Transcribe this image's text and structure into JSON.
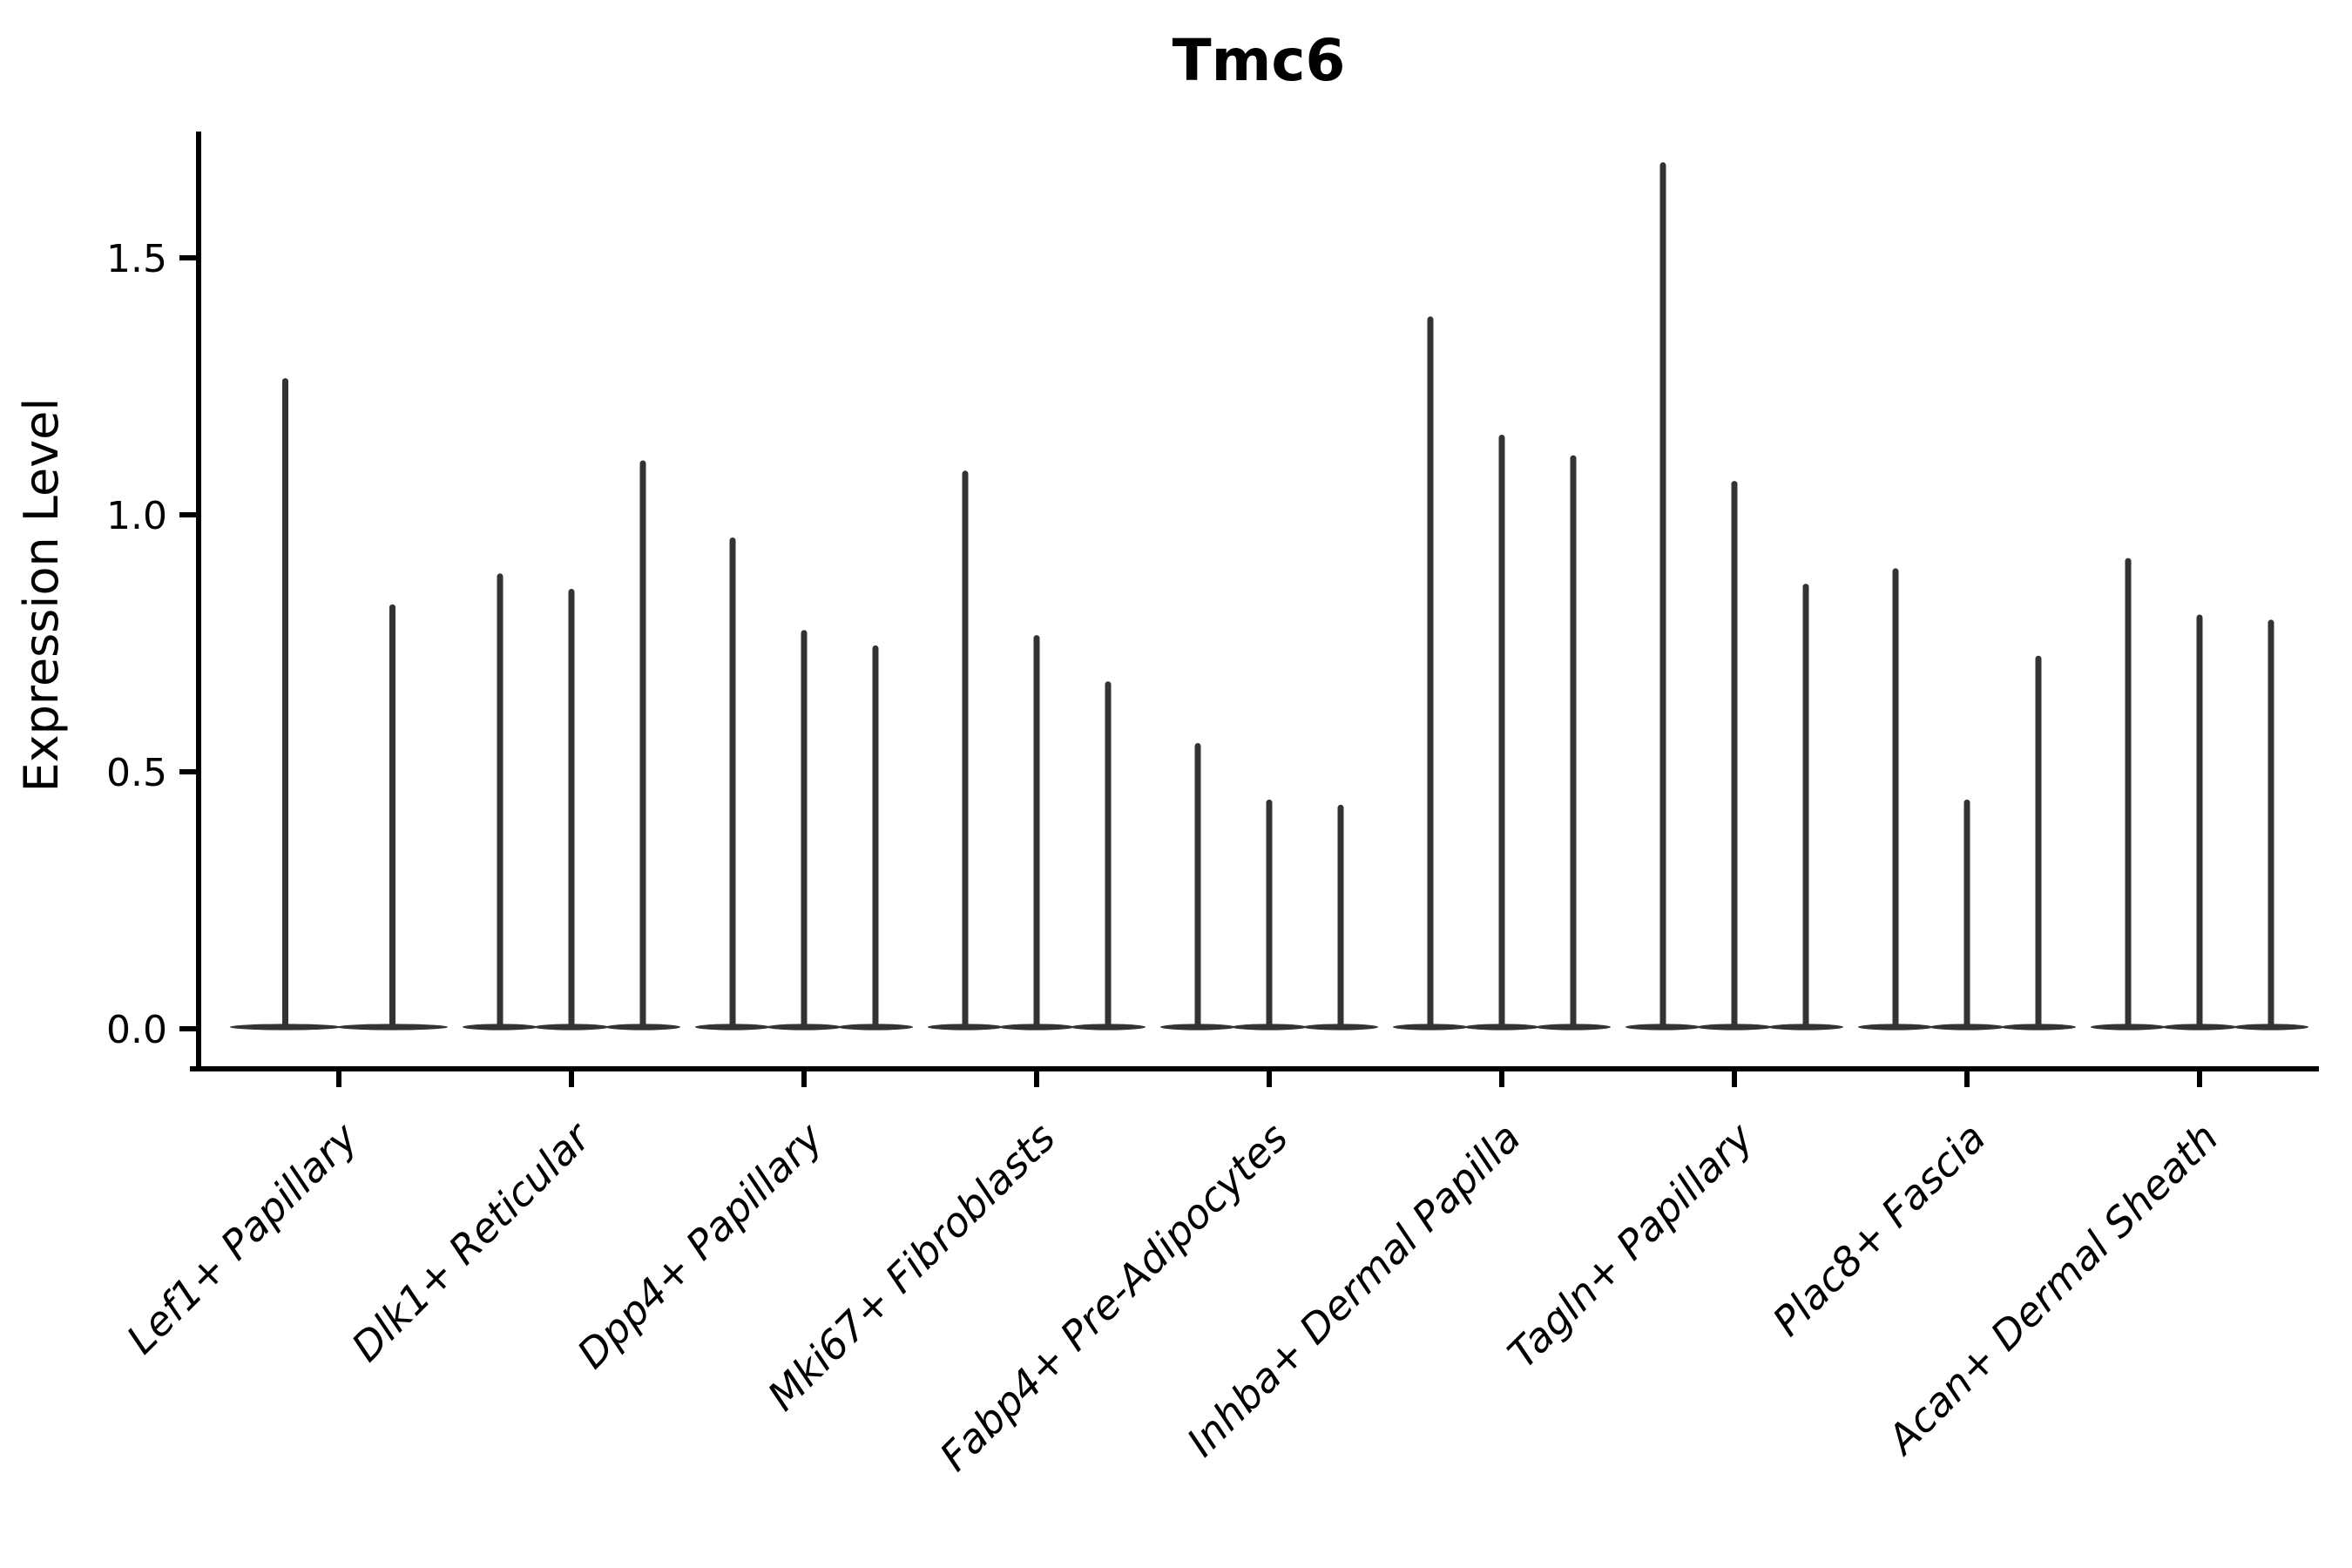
{
  "figure": {
    "background": "#ffffff"
  },
  "chart_data": {
    "type": "violin",
    "title": "Tmc6",
    "xlabel": "",
    "ylabel": "Expression Level",
    "ytick_labels": [
      "0.0",
      "0.5",
      "1.0",
      "1.5"
    ],
    "ytick_values": [
      0.0,
      0.5,
      1.0,
      1.5
    ],
    "ylim": [
      -0.07,
      1.75
    ],
    "grid": false,
    "legend": "none",
    "violin_color": "#333333",
    "axis_color": "#000000",
    "x_label_rotation_deg": 45,
    "categories": [
      "Lef1+ Papillary",
      "Dlk1+ Reticular",
      "Dpp4+ Papillary",
      "Mki67+ Fibroblasts",
      "Fabp4+ Pre-Adipocytes",
      "Inhba+ Dermal Papilla",
      "Tagln+ Papillary",
      "Plac8+ Fascia",
      "Acan+ Dermal Sheath"
    ],
    "groups": [
      {
        "category": "Lef1+ Papillary",
        "spike_max_values": [
          1.26,
          0.82
        ]
      },
      {
        "category": "Dlk1+ Reticular",
        "spike_max_values": [
          0.88,
          0.85,
          1.1
        ]
      },
      {
        "category": "Dpp4+ Papillary",
        "spike_max_values": [
          0.95,
          0.77,
          0.74
        ]
      },
      {
        "category": "Mki67+ Fibroblasts",
        "spike_max_values": [
          1.08,
          0.76,
          0.67
        ]
      },
      {
        "category": "Fabp4+ Pre-Adipocytes",
        "spike_max_values": [
          0.55,
          0.44,
          0.43
        ]
      },
      {
        "category": "Inhba+ Dermal Papilla",
        "spike_max_values": [
          1.38,
          1.15,
          1.11
        ]
      },
      {
        "category": "Tagln+ Papillary",
        "spike_max_values": [
          1.68,
          1.06,
          0.86
        ]
      },
      {
        "category": "Plac8+ Fascia",
        "spike_max_values": [
          0.89,
          0.44,
          0.72
        ]
      },
      {
        "category": "Acan+ Dermal Sheath",
        "spike_max_values": [
          0.91,
          0.8,
          0.79
        ]
      }
    ],
    "description": "Each violin is a near-zero-width distribution: a flat base at expression 0 with a thin vertical spike up to the max value."
  }
}
